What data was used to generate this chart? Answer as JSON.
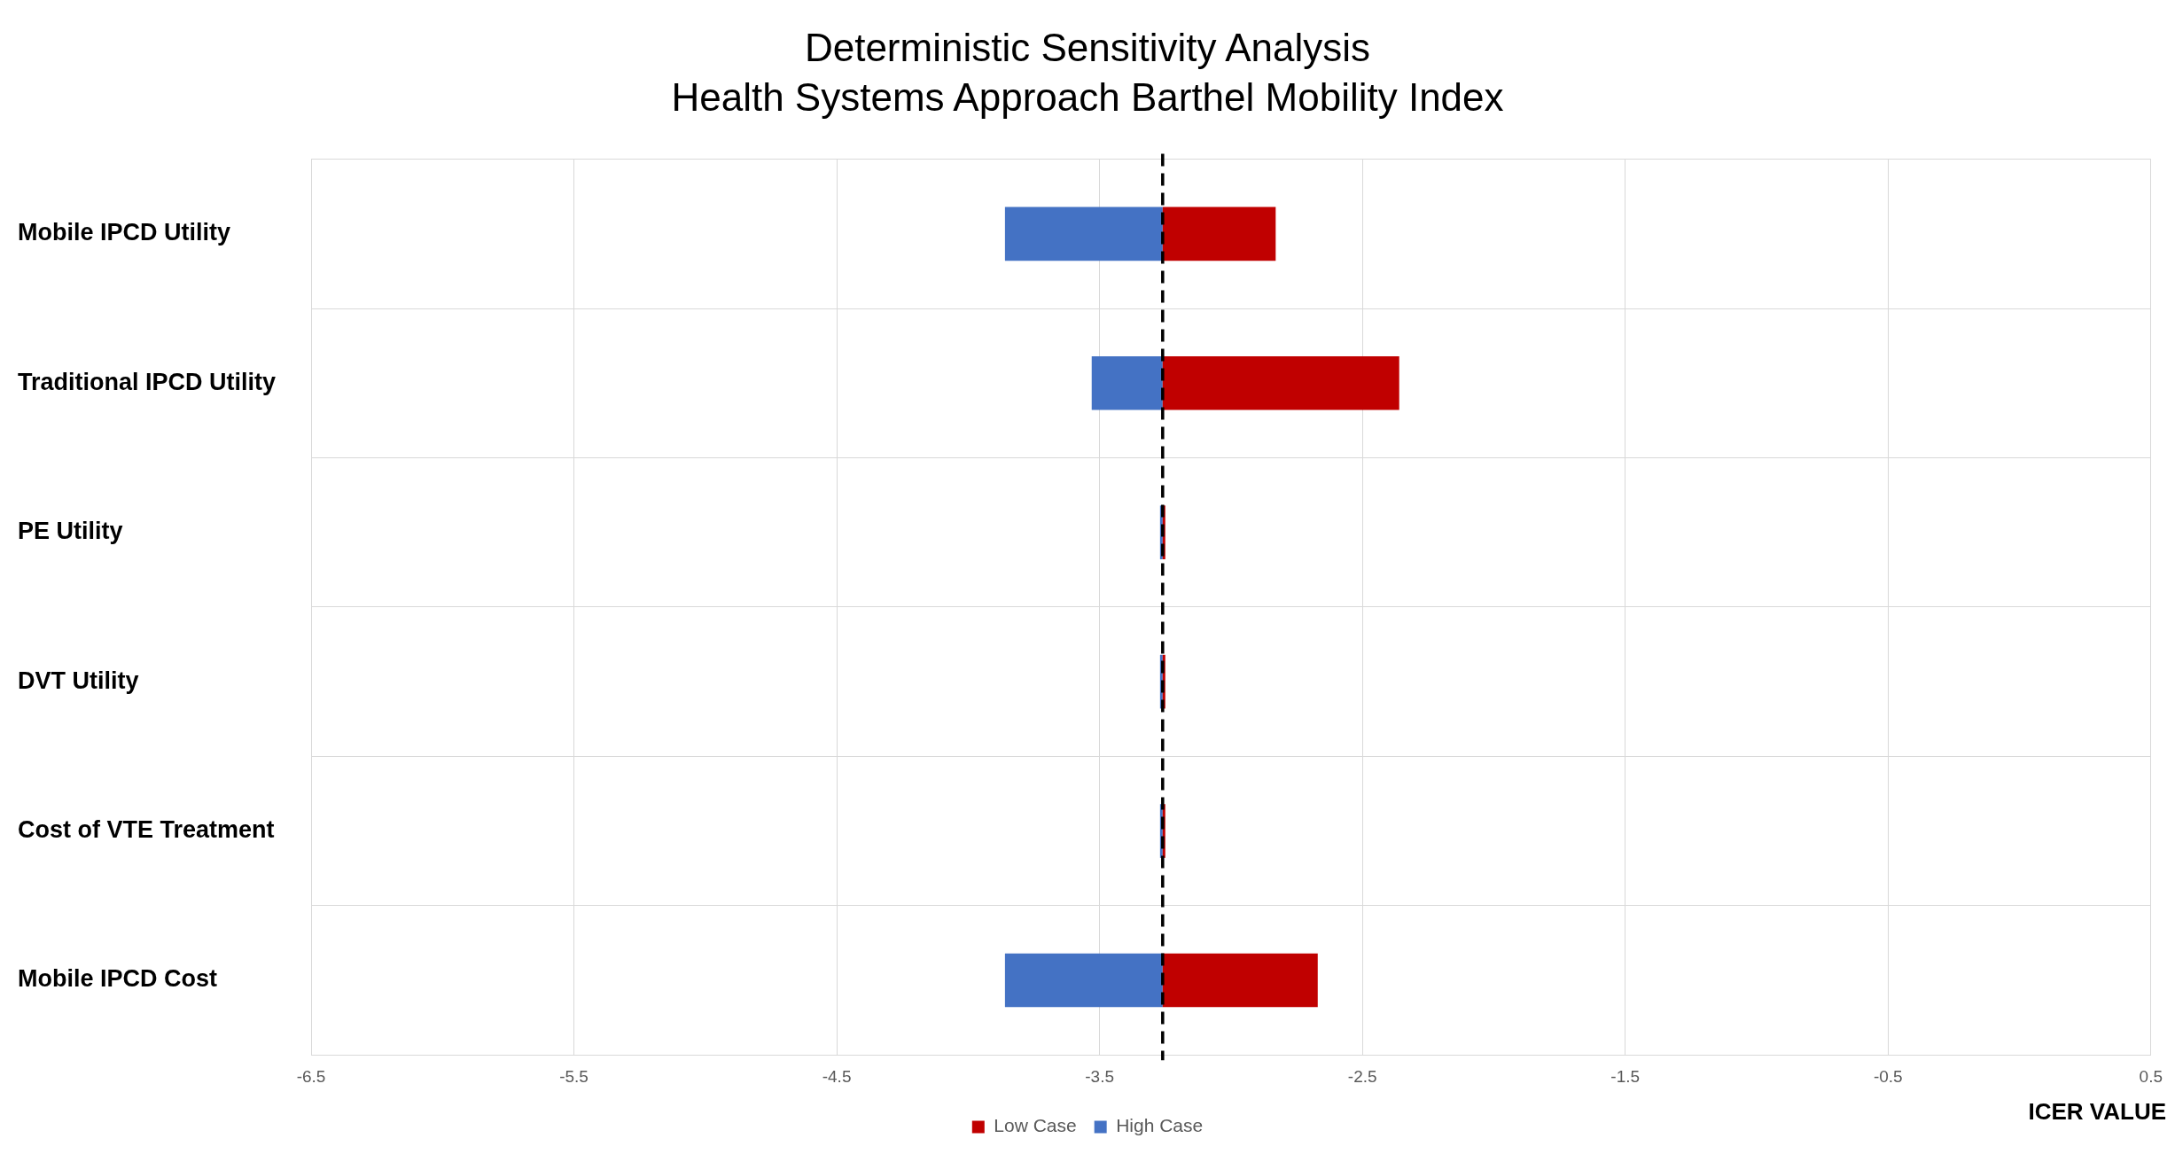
{
  "chart_data": {
    "type": "bar",
    "orientation": "horizontal",
    "title": "Deterministic Sensitivity Analysis",
    "subtitle": "Health Systems Approach Barthel Mobility Index",
    "xlabel": "ICER VALUE",
    "categories": [
      "Mobile IPCD Utility",
      "Traditional IPCD Utility",
      "PE Utility",
      "DVT Utility",
      "Cost of VTE Treatment",
      "Mobile IPCD Cost"
    ],
    "series": [
      {
        "name": "Low Case",
        "color": "#c00000",
        "base": [
          -3.26,
          -3.26,
          -3.26,
          -3.26,
          -3.26,
          -3.26
        ],
        "values": [
          0.43,
          0.9,
          0.01,
          0.01,
          0.01,
          0.59
        ]
      },
      {
        "name": "High Case",
        "color": "#4472c4",
        "base": [
          -3.26,
          -3.26,
          -3.26,
          -3.26,
          -3.26,
          -3.26
        ],
        "values": [
          -0.6,
          -0.27,
          -0.01,
          -0.01,
          -0.01,
          -0.6
        ]
      }
    ],
    "xlim": [
      -6.5,
      0.5
    ],
    "xticks": [
      -6.5,
      -5.5,
      -4.5,
      -3.5,
      -2.5,
      -1.5,
      -0.5,
      0.5
    ],
    "ref_lines": [
      {
        "axis": "x",
        "value": -3.26,
        "color": "#000000",
        "line_style": "dashed"
      }
    ],
    "grid": true,
    "legend": "bottom"
  }
}
